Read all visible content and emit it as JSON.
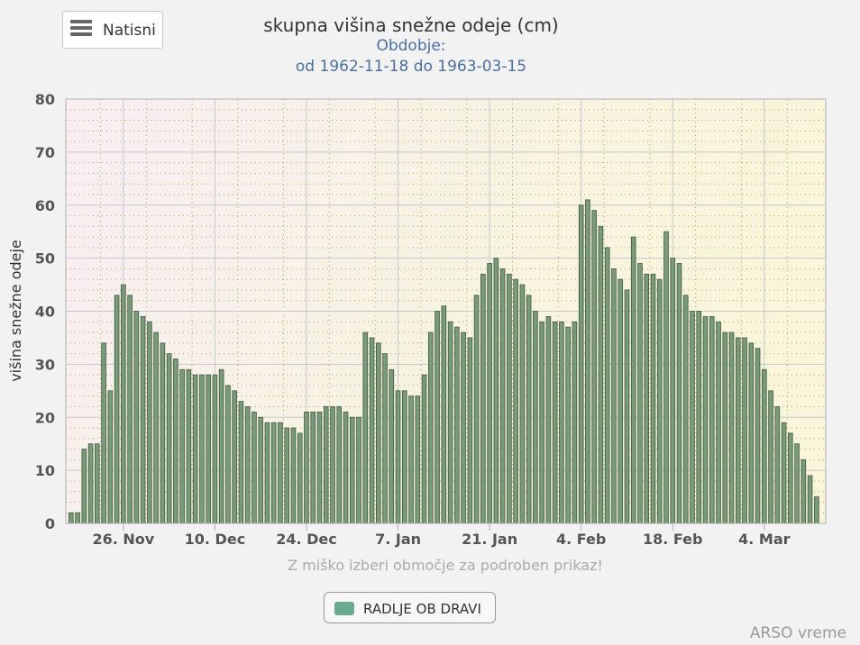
{
  "menu": {
    "label": "Natisni"
  },
  "chart_data": {
    "type": "bar",
    "title": "skupna višina snežne odeje (cm)",
    "subtitle_line1": "Obdobje:",
    "subtitle_line2": "od 1962-11-18 do 1963-03-15",
    "ylabel": "višina snežne odeje",
    "xlabel": "Z miško izberi območje za podroben prikaz!",
    "ylim": [
      0,
      80
    ],
    "yticks": [
      0,
      10,
      20,
      30,
      40,
      50,
      60,
      70,
      80
    ],
    "x_start": "1962-11-18",
    "x_end": "1963-03-15",
    "x_tick_labels": [
      {
        "date": "1962-11-26",
        "label": "26. Nov"
      },
      {
        "date": "1962-12-10",
        "label": "10. Dec"
      },
      {
        "date": "1962-12-24",
        "label": "24. Dec"
      },
      {
        "date": "1963-01-07",
        "label": "7. Jan"
      },
      {
        "date": "1963-01-21",
        "label": "21. Jan"
      },
      {
        "date": "1963-02-04",
        "label": "4. Feb"
      },
      {
        "date": "1963-02-18",
        "label": "18. Feb"
      },
      {
        "date": "1963-03-04",
        "label": "4. Mar"
      }
    ],
    "grid": true,
    "legend_position": "bottom-center",
    "series": [
      {
        "name": "RADLJE OB DRAVI",
        "color": "#6aab8e",
        "bar_color": "#7a9a7a",
        "values": [
          2,
          2,
          14,
          15,
          15,
          34,
          25,
          43,
          45,
          43,
          40,
          39,
          38,
          36,
          34,
          32,
          31,
          29,
          29,
          28,
          28,
          28,
          28,
          29,
          26,
          25,
          23,
          22,
          21,
          20,
          19,
          19,
          19,
          18,
          18,
          17,
          21,
          21,
          21,
          22,
          22,
          22,
          21,
          20,
          20,
          36,
          35,
          34,
          32,
          29,
          25,
          25,
          24,
          24,
          28,
          36,
          40,
          41,
          38,
          37,
          36,
          35,
          43,
          47,
          49,
          50,
          48,
          47,
          46,
          45,
          43,
          40,
          38,
          39,
          38,
          38,
          37,
          38,
          60,
          61,
          59,
          56,
          52,
          48,
          46,
          44,
          54,
          49,
          47,
          47,
          46,
          55,
          50,
          49,
          43,
          40,
          40,
          39,
          39,
          38,
          36,
          36,
          35,
          35,
          34,
          33,
          29,
          25,
          22,
          19,
          17,
          15,
          12,
          9,
          5
        ]
      }
    ]
  },
  "credit": "ARSO vreme"
}
